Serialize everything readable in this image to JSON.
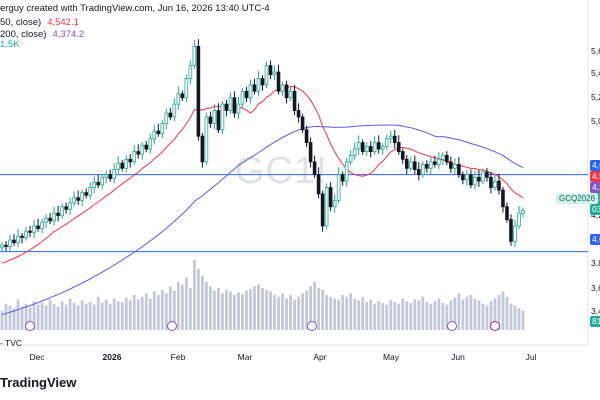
{
  "header": {
    "author_line": "erguy created with TradingView.com, Jun 16, 2026 13:40 UTC-4"
  },
  "legend": [
    {
      "label": "50, close)",
      "value": "4,542.1",
      "color": "#f23645"
    },
    {
      "label": "200, close)",
      "value": "4,374.2",
      "color": "#7e57c2"
    },
    {
      "label": "1.5K",
      "value": "",
      "color": "#22ab94"
    }
  ],
  "watermark": "GC1!",
  "symbol_badge": "GCQ2026",
  "source": "- TVC",
  "brand": "TradingView",
  "colors": {
    "up": "#22ab94",
    "down": "#131722",
    "ma50": "#f23645",
    "ma200": "#5b5ce2",
    "hline": "#2962ff",
    "volume": "#c3c9d9"
  },
  "price_axis": {
    "labels": [
      "5,6",
      "5,4",
      "5,2",
      "5,0",
      "4,2",
      "3,8",
      "3,6",
      "3,4"
    ],
    "tags": [
      {
        "text": "4,6",
        "color": "#2962ff"
      },
      {
        "text": "4,5",
        "color": "#f23645"
      },
      {
        "text": "4,3",
        "color": "#7e57c2"
      },
      {
        "text": "4,3",
        "color": "#22ab94"
      },
      {
        "text": "03",
        "color": "#22ab94"
      },
      {
        "text": "4,0",
        "color": "#2962ff"
      },
      {
        "text": "81",
        "color": "#22ab94"
      }
    ]
  },
  "time_axis": {
    "labels": [
      {
        "text": "Dec",
        "bold": false
      },
      {
        "text": "2026",
        "bold": true
      },
      {
        "text": "Feb",
        "bold": false
      },
      {
        "text": "Mar",
        "bold": false
      },
      {
        "text": "Apr",
        "bold": false
      },
      {
        "text": "May",
        "bold": false
      },
      {
        "text": "Jun",
        "bold": false
      },
      {
        "text": "Jul",
        "bold": false
      }
    ]
  },
  "chart_data": {
    "type": "candlestick",
    "levels": [
      4600,
      4000
    ],
    "ylim": [
      3350,
      5650
    ],
    "closes": [
      4050,
      4040,
      4090,
      4070,
      4120,
      4110,
      4160,
      4150,
      4200,
      4180,
      4230,
      4260,
      4240,
      4300,
      4280,
      4350,
      4330,
      4380,
      4420,
      4400,
      4460,
      4440,
      4500,
      4540,
      4520,
      4580,
      4600,
      4570,
      4640,
      4690,
      4650,
      4720,
      4700,
      4780,
      4760,
      4830,
      4800,
      4880,
      4940,
      4920,
      5000,
      5080,
      5050,
      5150,
      5230,
      5200,
      5350,
      5450,
      5600,
      4900,
      4700,
      5050,
      5000,
      5100,
      4950,
      5150,
      5100,
      5200,
      5080,
      5150,
      5250,
      5200,
      5300,
      5250,
      5350,
      5300,
      5450,
      5380,
      5400,
      5250,
      5300,
      5200,
      5250,
      5100,
      5050,
      4950,
      4850,
      4700,
      4600,
      4450,
      4200,
      4500,
      4350,
      4400,
      4600,
      4550,
      4700,
      4750,
      4800,
      4850,
      4780,
      4820,
      4780,
      4850,
      4800,
      4820,
      4880,
      4900,
      4850,
      4780,
      4720,
      4650,
      4700,
      4640,
      4600,
      4680,
      4650,
      4700,
      4680,
      4720,
      4750,
      4700,
      4650,
      4680,
      4600,
      4560,
      4600,
      4520,
      4580,
      4550,
      4620,
      4580,
      4500,
      4550,
      4480,
      4350,
      4250,
      4080,
      4200,
      4300,
      4320
    ],
    "volume": [
      22,
      30,
      28,
      25,
      35,
      27,
      30,
      26,
      33,
      29,
      31,
      28,
      35,
      30,
      27,
      33,
      29,
      36,
      31,
      28,
      34,
      30,
      32,
      29,
      38,
      31,
      35,
      30,
      36,
      33,
      32,
      37,
      34,
      40,
      35,
      38,
      42,
      36,
      44,
      40,
      46,
      42,
      50,
      45,
      55,
      52,
      60,
      48,
      80,
      70,
      62,
      55,
      50,
      45,
      48,
      42,
      46,
      44,
      40,
      43,
      41,
      45,
      47,
      50,
      52,
      48,
      46,
      44,
      40,
      38,
      42,
      36,
      40,
      35,
      38,
      42,
      45,
      50,
      55,
      48,
      46,
      40,
      38,
      36,
      35,
      40,
      38,
      42,
      36,
      34,
      38,
      32,
      35,
      30,
      33,
      31,
      29,
      34,
      32,
      30,
      36,
      33,
      31,
      35,
      34,
      38,
      32,
      30,
      33,
      36,
      31,
      29,
      34,
      37,
      42,
      35,
      38,
      40,
      36,
      34,
      30,
      28,
      33,
      36,
      40,
      44,
      38,
      30,
      28,
      25,
      22
    ]
  }
}
